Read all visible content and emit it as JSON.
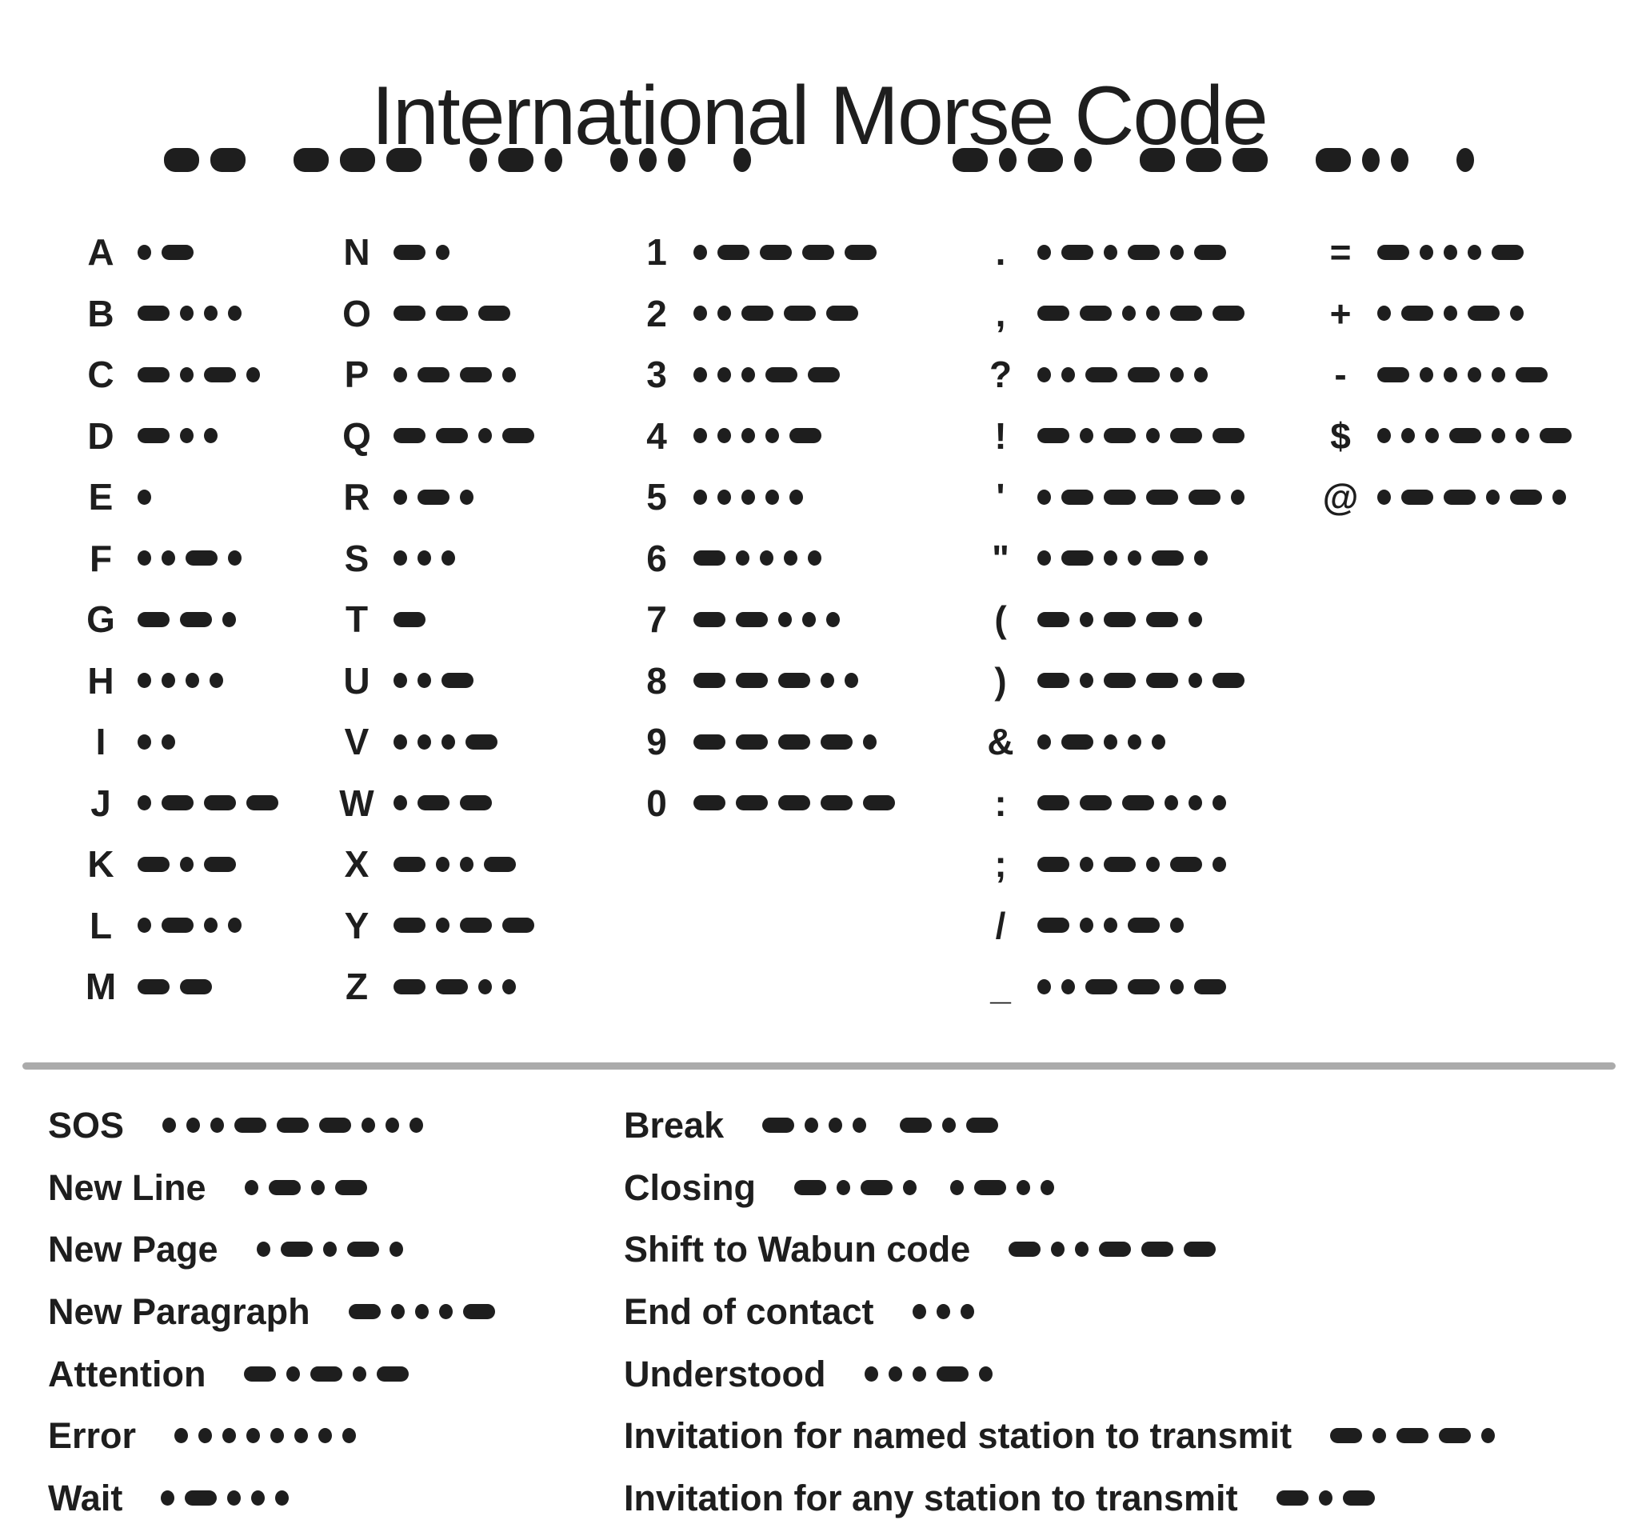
{
  "title": "International Morse Code",
  "header_morse": {
    "code": "-- --- .-. ... . / -.-. --- -.. ."
  },
  "columns": [
    {
      "entries": [
        {
          "char": "A",
          "code": ".-"
        },
        {
          "char": "B",
          "code": "-..."
        },
        {
          "char": "C",
          "code": "-.-."
        },
        {
          "char": "D",
          "code": "-.."
        },
        {
          "char": "E",
          "code": "."
        },
        {
          "char": "F",
          "code": "..-."
        },
        {
          "char": "G",
          "code": "--."
        },
        {
          "char": "H",
          "code": "...."
        },
        {
          "char": "I",
          "code": ".."
        },
        {
          "char": "J",
          "code": ".---"
        },
        {
          "char": "K",
          "code": "-.-"
        },
        {
          "char": "L",
          "code": ".-.."
        },
        {
          "char": "M",
          "code": "--"
        }
      ]
    },
    {
      "entries": [
        {
          "char": "N",
          "code": "-."
        },
        {
          "char": "O",
          "code": "---"
        },
        {
          "char": "P",
          "code": ".--."
        },
        {
          "char": "Q",
          "code": "--.-"
        },
        {
          "char": "R",
          "code": ".-."
        },
        {
          "char": "S",
          "code": "..."
        },
        {
          "char": "T",
          "code": "-"
        },
        {
          "char": "U",
          "code": "..-"
        },
        {
          "char": "V",
          "code": "...-"
        },
        {
          "char": "W",
          "code": ".--"
        },
        {
          "char": "X",
          "code": "-..-"
        },
        {
          "char": "Y",
          "code": "-.--"
        },
        {
          "char": "Z",
          "code": "--.."
        }
      ]
    },
    {
      "entries": [
        {
          "char": "1",
          "code": ".----"
        },
        {
          "char": "2",
          "code": "..---"
        },
        {
          "char": "3",
          "code": "...--"
        },
        {
          "char": "4",
          "code": "....-"
        },
        {
          "char": "5",
          "code": "....."
        },
        {
          "char": "6",
          "code": "-...."
        },
        {
          "char": "7",
          "code": "--..."
        },
        {
          "char": "8",
          "code": "---.."
        },
        {
          "char": "9",
          "code": "----."
        },
        {
          "char": "0",
          "code": "-----"
        }
      ]
    },
    {
      "entries": [
        {
          "char": ".",
          "code": ".-.-.-"
        },
        {
          "char": ",",
          "code": "--..--"
        },
        {
          "char": "?",
          "code": "..--.."
        },
        {
          "char": "!",
          "code": "-.-.--"
        },
        {
          "char": "'",
          "code": ".----."
        },
        {
          "char": "\"",
          "code": ".-..-."
        },
        {
          "char": "(",
          "code": "-.--."
        },
        {
          "char": ")",
          "code": "-.--.-"
        },
        {
          "char": "&",
          "code": ".-..."
        },
        {
          "char": ":",
          "code": "---..."
        },
        {
          "char": ";",
          "code": "-.-.-."
        },
        {
          "char": "/",
          "code": "-..-."
        },
        {
          "char": "_",
          "code": "..--.-"
        }
      ]
    },
    {
      "entries": [
        {
          "char": "=",
          "code": "-...-"
        },
        {
          "char": "+",
          "code": ".-.-."
        },
        {
          "char": "-",
          "code": "-....-"
        },
        {
          "char": "$",
          "code": "...-..-"
        },
        {
          "char": "@",
          "code": ".--.-."
        }
      ]
    }
  ],
  "prosigns": {
    "left": [
      {
        "label": "SOS",
        "code": "...---..."
      },
      {
        "label": "New Line",
        "code": ".-.-"
      },
      {
        "label": "New Page",
        "code": ".-.-."
      },
      {
        "label": "New Paragraph",
        "code": "-...-"
      },
      {
        "label": "Attention",
        "code": "-.-.-"
      },
      {
        "label": "Error",
        "code": "........"
      },
      {
        "label": "Wait",
        "code": ".-..."
      }
    ],
    "right": [
      {
        "label": "Break",
        "code": "-... -.-"
      },
      {
        "label": "Closing",
        "code": "-.-. .-.."
      },
      {
        "label": "Shift to Wabun code",
        "code": "-..---"
      },
      {
        "label": "End of contact",
        "code": "..."
      },
      {
        "label": "Understood",
        "code": "...-."
      },
      {
        "label": "Invitation for named station to transmit",
        "code": "-.--."
      },
      {
        "label": "Invitation for any station to transmit",
        "code": "-.-"
      }
    ]
  },
  "colors": {
    "ink": "#1e1e1e",
    "divider": "#ababab",
    "background": "#ffffff"
  }
}
